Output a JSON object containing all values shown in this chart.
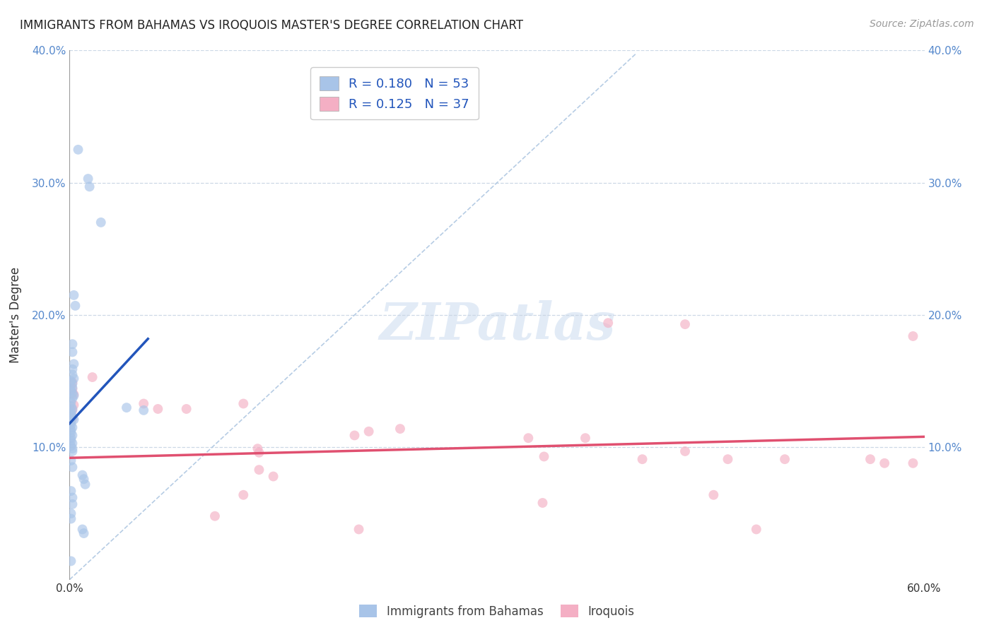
{
  "title": "IMMIGRANTS FROM BAHAMAS VS IROQUOIS MASTER'S DEGREE CORRELATION CHART",
  "source": "Source: ZipAtlas.com",
  "ylabel": "Master's Degree",
  "xlabel": "",
  "xlim": [
    0,
    0.6
  ],
  "ylim": [
    0,
    0.4
  ],
  "ytick_labels_left": [
    "",
    "10.0%",
    "20.0%",
    "30.0%",
    "40.0%"
  ],
  "ytick_labels_right": [
    "",
    "10.0%",
    "20.0%",
    "30.0%",
    "40.0%"
  ],
  "xtick_labels": [
    "0.0%",
    "",
    "",
    "",
    "",
    "",
    "60.0%"
  ],
  "legend_label1": "Immigrants from Bahamas",
  "legend_label2": "Iroquois",
  "R1": "0.180",
  "N1": "53",
  "R2": "0.125",
  "N2": "37",
  "color1": "#a8c4e8",
  "color2": "#f4afc4",
  "line1_color": "#2255bb",
  "line2_color": "#e05070",
  "diag_color": "#aac4e0",
  "blue_points": [
    [
      0.006,
      0.325
    ],
    [
      0.013,
      0.303
    ],
    [
      0.014,
      0.297
    ],
    [
      0.022,
      0.27
    ],
    [
      0.003,
      0.215
    ],
    [
      0.004,
      0.207
    ],
    [
      0.002,
      0.178
    ],
    [
      0.002,
      0.172
    ],
    [
      0.003,
      0.163
    ],
    [
      0.002,
      0.159
    ],
    [
      0.002,
      0.155
    ],
    [
      0.003,
      0.152
    ],
    [
      0.001,
      0.15
    ],
    [
      0.002,
      0.148
    ],
    [
      0.002,
      0.145
    ],
    [
      0.001,
      0.143
    ],
    [
      0.002,
      0.141
    ],
    [
      0.003,
      0.139
    ],
    [
      0.002,
      0.137
    ],
    [
      0.001,
      0.134
    ],
    [
      0.001,
      0.131
    ],
    [
      0.002,
      0.129
    ],
    [
      0.001,
      0.127
    ],
    [
      0.001,
      0.125
    ],
    [
      0.002,
      0.123
    ],
    [
      0.003,
      0.121
    ],
    [
      0.001,
      0.119
    ],
    [
      0.001,
      0.117
    ],
    [
      0.002,
      0.115
    ],
    [
      0.001,
      0.113
    ],
    [
      0.001,
      0.111
    ],
    [
      0.002,
      0.109
    ],
    [
      0.001,
      0.107
    ],
    [
      0.001,
      0.105
    ],
    [
      0.002,
      0.103
    ],
    [
      0.001,
      0.101
    ],
    [
      0.002,
      0.099
    ],
    [
      0.002,
      0.097
    ],
    [
      0.04,
      0.13
    ],
    [
      0.052,
      0.128
    ],
    [
      0.001,
      0.09
    ],
    [
      0.002,
      0.085
    ],
    [
      0.009,
      0.079
    ],
    [
      0.01,
      0.076
    ],
    [
      0.011,
      0.072
    ],
    [
      0.001,
      0.067
    ],
    [
      0.002,
      0.062
    ],
    [
      0.002,
      0.057
    ],
    [
      0.001,
      0.05
    ],
    [
      0.001,
      0.046
    ],
    [
      0.009,
      0.038
    ],
    [
      0.01,
      0.035
    ],
    [
      0.001,
      0.014
    ]
  ],
  "pink_points": [
    [
      0.016,
      0.153
    ],
    [
      0.002,
      0.149
    ],
    [
      0.002,
      0.144
    ],
    [
      0.003,
      0.14
    ],
    [
      0.003,
      0.132
    ],
    [
      0.002,
      0.128
    ],
    [
      0.002,
      0.122
    ],
    [
      0.052,
      0.133
    ],
    [
      0.062,
      0.129
    ],
    [
      0.082,
      0.129
    ],
    [
      0.122,
      0.133
    ],
    [
      0.132,
      0.099
    ],
    [
      0.133,
      0.096
    ],
    [
      0.2,
      0.109
    ],
    [
      0.21,
      0.112
    ],
    [
      0.232,
      0.114
    ],
    [
      0.133,
      0.083
    ],
    [
      0.143,
      0.078
    ],
    [
      0.322,
      0.107
    ],
    [
      0.362,
      0.107
    ],
    [
      0.122,
      0.064
    ],
    [
      0.333,
      0.093
    ],
    [
      0.402,
      0.091
    ],
    [
      0.432,
      0.097
    ],
    [
      0.462,
      0.091
    ],
    [
      0.502,
      0.091
    ],
    [
      0.562,
      0.091
    ],
    [
      0.102,
      0.048
    ],
    [
      0.203,
      0.038
    ],
    [
      0.332,
      0.058
    ],
    [
      0.452,
      0.064
    ],
    [
      0.482,
      0.038
    ],
    [
      0.572,
      0.088
    ],
    [
      0.592,
      0.088
    ],
    [
      0.378,
      0.194
    ],
    [
      0.432,
      0.193
    ],
    [
      0.592,
      0.184
    ]
  ],
  "blue_line": {
    "x0": 0.0,
    "y0": 0.118,
    "x1": 0.055,
    "y1": 0.182
  },
  "pink_line": {
    "x0": 0.0,
    "y0": 0.092,
    "x1": 0.6,
    "y1": 0.108
  },
  "background_color": "#ffffff",
  "grid_color": "#c8d4e4"
}
